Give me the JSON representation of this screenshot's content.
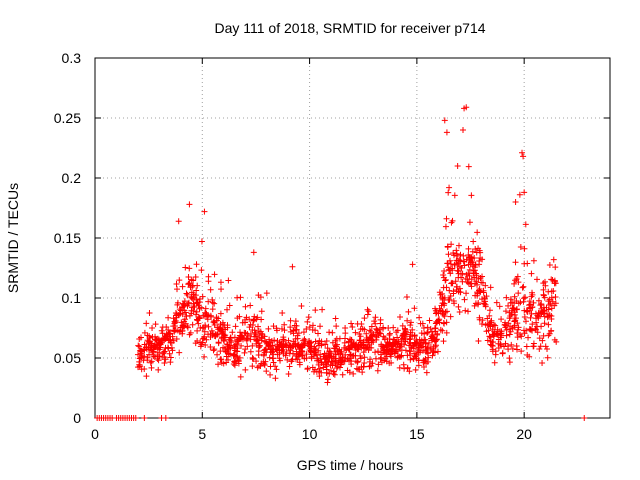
{
  "chart_data": {
    "type": "scatter",
    "title": "Day 111 of 2018, SRMTID for receiver p714",
    "xlabel": "GPS time / hours",
    "ylabel": "SRMTID / TECUs",
    "xlim": [
      0,
      24
    ],
    "ylim": [
      0,
      0.3
    ],
    "x_ticks": [
      0,
      5,
      10,
      15,
      20
    ],
    "y_ticks": [
      0,
      0.05,
      0.1,
      0.15,
      0.2,
      0.25,
      0.3
    ],
    "x_tick_labels": [
      "0",
      "5",
      "10",
      "15",
      "20"
    ],
    "y_tick_labels": [
      "0",
      "0.05",
      "0.1",
      "0.15",
      "0.2",
      "0.25",
      "0.3"
    ],
    "grid": true,
    "marker": "+",
    "series": [
      {
        "name": "SRMTID",
        "color": "#ff0000",
        "zero_points_x": [
          0.1,
          0.2,
          0.3,
          0.4,
          0.5,
          0.6,
          0.7,
          0.8,
          1.0,
          1.1,
          1.2,
          1.3,
          1.4,
          1.5,
          1.6,
          1.7,
          1.8,
          1.9,
          2.3,
          3.1,
          3.3,
          22.8
        ],
        "envelope": [
          {
            "x": 2.0,
            "low": 0.03,
            "mid": 0.05,
            "high": 0.07
          },
          {
            "x": 2.5,
            "low": 0.03,
            "mid": 0.06,
            "high": 0.1
          },
          {
            "x": 3.0,
            "low": 0.03,
            "mid": 0.06,
            "high": 0.08
          },
          {
            "x": 3.5,
            "low": 0.04,
            "mid": 0.07,
            "high": 0.1
          },
          {
            "x": 4.0,
            "low": 0.04,
            "mid": 0.09,
            "high": 0.16
          },
          {
            "x": 4.5,
            "low": 0.05,
            "mid": 0.1,
            "high": 0.18
          },
          {
            "x": 5.0,
            "low": 0.04,
            "mid": 0.09,
            "high": 0.17
          },
          {
            "x": 5.5,
            "low": 0.04,
            "mid": 0.08,
            "high": 0.13
          },
          {
            "x": 6.0,
            "low": 0.03,
            "mid": 0.07,
            "high": 0.15
          },
          {
            "x": 6.5,
            "low": 0.03,
            "mid": 0.06,
            "high": 0.12
          },
          {
            "x": 7.0,
            "low": 0.02,
            "mid": 0.07,
            "high": 0.11
          },
          {
            "x": 7.5,
            "low": 0.03,
            "mid": 0.07,
            "high": 0.14
          },
          {
            "x": 8.0,
            "low": 0.02,
            "mid": 0.06,
            "high": 0.12
          },
          {
            "x": 8.5,
            "low": 0.03,
            "mid": 0.06,
            "high": 0.1
          },
          {
            "x": 9.0,
            "low": 0.03,
            "mid": 0.06,
            "high": 0.1
          },
          {
            "x": 9.5,
            "low": 0.03,
            "mid": 0.06,
            "high": 0.13
          },
          {
            "x": 10.0,
            "low": 0.03,
            "mid": 0.06,
            "high": 0.1
          },
          {
            "x": 10.5,
            "low": 0.03,
            "mid": 0.05,
            "high": 0.11
          },
          {
            "x": 11.0,
            "low": 0.02,
            "mid": 0.05,
            "high": 0.09
          },
          {
            "x": 11.5,
            "low": 0.03,
            "mid": 0.05,
            "high": 0.1
          },
          {
            "x": 12.0,
            "low": 0.03,
            "mid": 0.06,
            "high": 0.09
          },
          {
            "x": 12.5,
            "low": 0.03,
            "mid": 0.06,
            "high": 0.1
          },
          {
            "x": 13.0,
            "low": 0.03,
            "mid": 0.07,
            "high": 0.11
          },
          {
            "x": 13.5,
            "low": 0.03,
            "mid": 0.06,
            "high": 0.11
          },
          {
            "x": 14.0,
            "low": 0.04,
            "mid": 0.06,
            "high": 0.09
          },
          {
            "x": 14.5,
            "low": 0.03,
            "mid": 0.07,
            "high": 0.13
          },
          {
            "x": 15.0,
            "low": 0.03,
            "mid": 0.06,
            "high": 0.1
          },
          {
            "x": 15.5,
            "low": 0.03,
            "mid": 0.06,
            "high": 0.11
          },
          {
            "x": 16.0,
            "low": 0.03,
            "mid": 0.08,
            "high": 0.12
          },
          {
            "x": 16.5,
            "low": 0.05,
            "mid": 0.12,
            "high": 0.25
          },
          {
            "x": 17.0,
            "low": 0.06,
            "mid": 0.13,
            "high": 0.21
          },
          {
            "x": 17.5,
            "low": 0.07,
            "mid": 0.13,
            "high": 0.26
          },
          {
            "x": 18.0,
            "low": 0.05,
            "mid": 0.11,
            "high": 0.16
          },
          {
            "x": 18.5,
            "low": 0.03,
            "mid": 0.07,
            "high": 0.12
          },
          {
            "x": 19.0,
            "low": 0.03,
            "mid": 0.07,
            "high": 0.11
          },
          {
            "x": 19.5,
            "low": 0.03,
            "mid": 0.09,
            "high": 0.16
          },
          {
            "x": 20.0,
            "low": 0.04,
            "mid": 0.1,
            "high": 0.22
          },
          {
            "x": 20.5,
            "low": 0.03,
            "mid": 0.08,
            "high": 0.15
          },
          {
            "x": 21.0,
            "low": 0.03,
            "mid": 0.09,
            "high": 0.13
          },
          {
            "x": 21.5,
            "low": 0.05,
            "mid": 0.1,
            "high": 0.16
          }
        ],
        "peaks": [
          {
            "x": 3.9,
            "y": 0.164
          },
          {
            "x": 4.4,
            "y": 0.178
          },
          {
            "x": 5.1,
            "y": 0.172
          },
          {
            "x": 7.4,
            "y": 0.138
          },
          {
            "x": 9.2,
            "y": 0.126
          },
          {
            "x": 14.8,
            "y": 0.128
          },
          {
            "x": 16.3,
            "y": 0.248
          },
          {
            "x": 16.4,
            "y": 0.238
          },
          {
            "x": 16.9,
            "y": 0.21
          },
          {
            "x": 17.2,
            "y": 0.258
          },
          {
            "x": 17.3,
            "y": 0.259
          },
          {
            "x": 17.15,
            "y": 0.24
          },
          {
            "x": 16.5,
            "y": 0.192
          },
          {
            "x": 19.9,
            "y": 0.221
          },
          {
            "x": 19.95,
            "y": 0.218
          },
          {
            "x": 19.8,
            "y": 0.186
          },
          {
            "x": 20.0,
            "y": 0.188
          },
          {
            "x": 19.6,
            "y": 0.18
          }
        ]
      }
    ]
  }
}
